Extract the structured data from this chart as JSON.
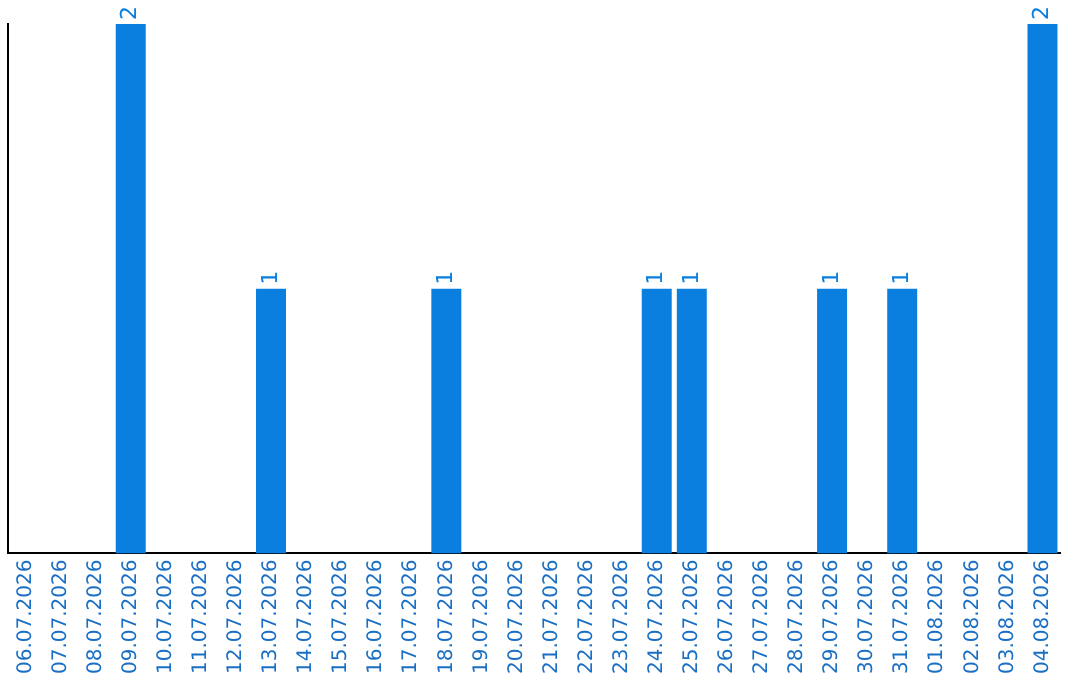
{
  "chart_data": {
    "type": "bar",
    "categories": [
      "06.07.2026",
      "07.07.2026",
      "08.07.2026",
      "09.07.2026",
      "10.07.2026",
      "11.07.2026",
      "12.07.2026",
      "13.07.2026",
      "14.07.2026",
      "15.07.2026",
      "16.07.2026",
      "17.07.2026",
      "18.07.2026",
      "19.07.2026",
      "20.07.2026",
      "21.07.2026",
      "22.07.2026",
      "23.07.2026",
      "24.07.2026",
      "25.07.2026",
      "26.07.2026",
      "27.07.2026",
      "28.07.2026",
      "29.07.2026",
      "30.07.2026",
      "31.07.2026",
      "01.08.2026",
      "02.08.2026",
      "03.08.2026",
      "04.08.2026"
    ],
    "values": [
      0,
      0,
      0,
      2,
      0,
      0,
      0,
      1,
      0,
      0,
      0,
      0,
      1,
      0,
      0,
      0,
      0,
      0,
      1,
      1,
      0,
      0,
      0,
      1,
      0,
      1,
      0,
      0,
      0,
      2
    ],
    "value_labels": [
      null,
      null,
      null,
      "2",
      null,
      null,
      null,
      "1",
      null,
      null,
      null,
      null,
      "1",
      null,
      null,
      null,
      null,
      null,
      "1",
      "1",
      null,
      null,
      null,
      "1",
      null,
      "1",
      null,
      null,
      null,
      "2"
    ],
    "color": "#0a7fe0",
    "tick_labels": "x",
    "grid": false,
    "legend": false
  }
}
